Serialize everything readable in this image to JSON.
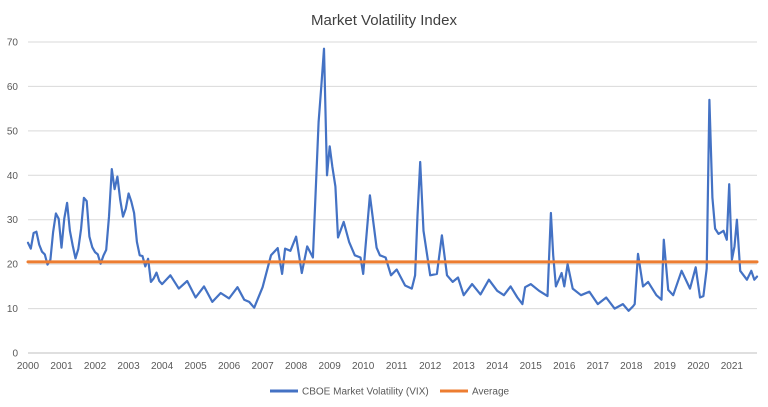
{
  "chart_data": {
    "type": "line",
    "title": "Market Volatility Index",
    "xlabel": "",
    "ylabel": "",
    "ylim": [
      0,
      70
    ],
    "yticks": [
      "0",
      "10",
      "20",
      "30",
      "40",
      "50",
      "60",
      "70"
    ],
    "xlim": [
      2000,
      2021.75
    ],
    "xticks": [
      "2000",
      "2001",
      "2002",
      "2003",
      "2004",
      "2005",
      "2006",
      "2007",
      "2008",
      "2009",
      "2010",
      "2011",
      "2012",
      "2013",
      "2014",
      "2015",
      "2016",
      "2017",
      "2018",
      "2019",
      "2020",
      "2021"
    ],
    "grid": "horizontal",
    "legend_position": "bottom",
    "colors": {
      "vix": "#4472C4",
      "average": "#ED7D31",
      "grid": "#D9D9D9",
      "axis": "#BFBFBF"
    },
    "series": [
      {
        "name": "CBOE Market Volatility (VIX)",
        "x": [
          2000.0,
          2000.083,
          2000.167,
          2000.25,
          2000.333,
          2000.417,
          2000.5,
          2000.583,
          2000.667,
          2000.75,
          2000.833,
          2000.917,
          2001.0,
          2001.083,
          2001.167,
          2001.25,
          2001.333,
          2001.417,
          2001.5,
          2001.583,
          2001.667,
          2001.75,
          2001.833,
          2001.917,
          2002.0,
          2002.083,
          2002.167,
          2002.25,
          2002.333,
          2002.417,
          2002.5,
          2002.583,
          2002.667,
          2002.75,
          2002.833,
          2002.917,
          2003.0,
          2003.083,
          2003.167,
          2003.25,
          2003.333,
          2003.417,
          2003.5,
          2003.583,
          2003.667,
          2003.75,
          2003.833,
          2003.917,
          2004.0,
          2004.25,
          2004.5,
          2004.75,
          2005.0,
          2005.25,
          2005.5,
          2005.75,
          2006.0,
          2006.25,
          2006.45,
          2006.6,
          2006.75,
          2007.0,
          2007.25,
          2007.45,
          2007.58,
          2007.67,
          2007.83,
          2008.0,
          2008.17,
          2008.33,
          2008.5,
          2008.67,
          2008.75,
          2008.83,
          2008.92,
          2009.0,
          2009.08,
          2009.17,
          2009.25,
          2009.42,
          2009.58,
          2009.75,
          2009.92,
          2010.0,
          2010.2,
          2010.4,
          2010.5,
          2010.67,
          2010.83,
          2011.0,
          2011.25,
          2011.45,
          2011.55,
          2011.62,
          2011.7,
          2011.8,
          2011.92,
          2012.0,
          2012.2,
          2012.35,
          2012.5,
          2012.67,
          2012.83,
          2013.0,
          2013.25,
          2013.5,
          2013.75,
          2014.0,
          2014.2,
          2014.4,
          2014.6,
          2014.75,
          2014.83,
          2015.0,
          2015.25,
          2015.5,
          2015.6,
          2015.67,
          2015.75,
          2015.92,
          2016.0,
          2016.1,
          2016.25,
          2016.5,
          2016.75,
          2017.0,
          2017.25,
          2017.5,
          2017.75,
          2017.92,
          2018.05,
          2018.1,
          2018.2,
          2018.35,
          2018.5,
          2018.75,
          2018.9,
          2018.97,
          2019.1,
          2019.25,
          2019.5,
          2019.75,
          2019.92,
          2020.05,
          2020.15,
          2020.25,
          2020.33,
          2020.42,
          2020.5,
          2020.6,
          2020.75,
          2020.85,
          2020.92,
          2021.0,
          2021.08,
          2021.15,
          2021.25,
          2021.35,
          2021.45,
          2021.58,
          2021.67,
          2021.75
        ],
        "values": [
          24.8,
          23.5,
          27.0,
          27.3,
          24.4,
          22.8,
          22.2,
          19.9,
          21.0,
          27.2,
          31.4,
          30.2,
          23.7,
          30.3,
          33.8,
          27.5,
          24.2,
          21.3,
          23.4,
          28.0,
          34.9,
          34.2,
          26.2,
          23.8,
          22.7,
          22.2,
          20.1,
          21.9,
          23.2,
          30.7,
          41.4,
          36.9,
          39.7,
          34.5,
          30.7,
          32.5,
          35.9,
          34.1,
          31.5,
          25.0,
          22.0,
          21.8,
          19.5,
          21.2,
          16.0,
          16.8,
          18.1,
          16.2,
          15.5,
          17.5,
          14.5,
          16.2,
          12.5,
          15.0,
          11.5,
          13.5,
          12.3,
          14.8,
          12.0,
          11.5,
          10.2,
          14.8,
          22.0,
          23.6,
          17.8,
          23.5,
          23.0,
          26.2,
          18.0,
          24.0,
          21.5,
          52.0,
          60.0,
          68.5,
          40.0,
          46.5,
          42.0,
          37.5,
          26.0,
          29.5,
          25.0,
          22.0,
          21.5,
          17.8,
          35.5,
          23.7,
          22.0,
          21.5,
          17.5,
          18.8,
          15.2,
          14.5,
          17.5,
          31.0,
          43.0,
          27.5,
          21.5,
          17.5,
          17.8,
          26.5,
          17.5,
          16.0,
          17.0,
          13.0,
          15.5,
          13.2,
          16.5,
          14.0,
          13.0,
          15.0,
          12.5,
          11.0,
          14.8,
          15.5,
          14.0,
          12.8,
          31.5,
          22.0,
          15.0,
          18.0,
          15.0,
          20.0,
          14.5,
          13.0,
          13.8,
          11.0,
          12.5,
          10.0,
          11.0,
          9.5,
          10.5,
          11.0,
          22.3,
          15.0,
          16.0,
          13.0,
          12.0,
          25.5,
          14.2,
          13.0,
          18.5,
          14.5,
          19.3,
          12.5,
          12.8,
          19.0,
          57.0,
          35.0,
          28.0,
          26.8,
          27.5,
          25.5,
          38.0,
          21.0,
          24.0,
          30.0,
          18.5,
          17.5,
          16.5,
          18.5,
          16.5,
          17.2
        ]
      },
      {
        "name": "Average",
        "x": [
          2000,
          2021.75
        ],
        "values": [
          20.5,
          20.5
        ]
      }
    ]
  }
}
